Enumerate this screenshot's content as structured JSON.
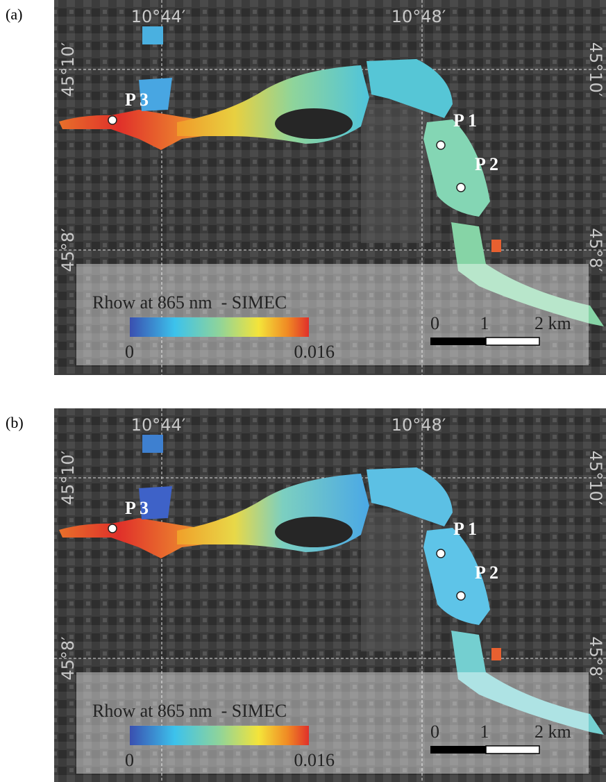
{
  "panels": [
    {
      "tag": "(a)",
      "lon_labels": [
        "10°44′",
        "10°48′"
      ],
      "lat_left": [
        "45°10′",
        "45°8′"
      ],
      "lat_right": [
        "45°10′",
        "45°8′"
      ],
      "points": [
        "P 3",
        "P 1",
        "P 2"
      ],
      "legend_title": "Rhow at 865 nm  - SIMEC",
      "colorbar_min": "0",
      "colorbar_max": "0.016",
      "scale_labels": [
        "0",
        "1",
        "2 km"
      ]
    },
    {
      "tag": "(b)",
      "lon_labels": [
        "10°44′",
        "10°48′"
      ],
      "lat_left": [
        "45°10′",
        "45°8′"
      ],
      "lat_right": [
        "45°10′",
        "45°8′"
      ],
      "points": [
        "P 3",
        "P 1",
        "P 2"
      ],
      "legend_title": "Rhow at 865 nm  - SIMEC",
      "colorbar_min": "0",
      "colorbar_max": "0.016",
      "scale_labels": [
        "0",
        "1",
        "2 km"
      ]
    }
  ]
}
